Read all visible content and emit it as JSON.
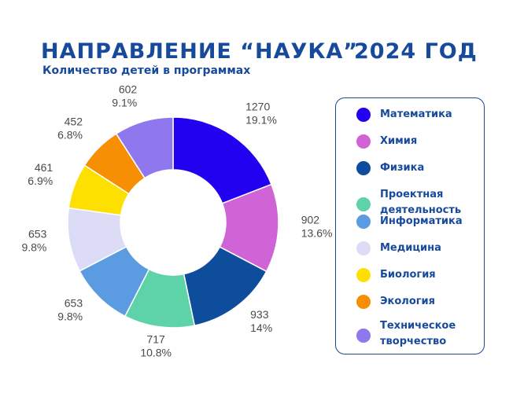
{
  "header": {
    "title": "НАПРАВЛЕНИЕ “НАУКА”",
    "year": "2024 ГОД",
    "subtitle": "Количество детей в программах"
  },
  "chart_data": {
    "type": "pie",
    "donut": true,
    "title": "НАПРАВЛЕНИЕ “НАУКА” 2024 ГОД",
    "subtitle": "Количество детей в программах",
    "legend_position": "right",
    "categories": [
      "Математика",
      "Химия",
      "Физика",
      "Проектная деятельность",
      "Информатика",
      "Медицина",
      "Биология",
      "Экология",
      "Техническое творчество"
    ],
    "values": [
      1270,
      902,
      933,
      717,
      653,
      653,
      461,
      452,
      602
    ],
    "percent_labels": [
      "19.1%",
      "13.6%",
      "14%",
      "10.8%",
      "9.8%",
      "9.8%",
      "6.9%",
      "6.8%",
      "9.1%"
    ],
    "colors": [
      "#2200f0",
      "#d063d6",
      "#0d4d9c",
      "#5fd3a8",
      "#5b9be2",
      "#dcdcf7",
      "#fde000",
      "#f78f05",
      "#8f78ee"
    ]
  }
}
